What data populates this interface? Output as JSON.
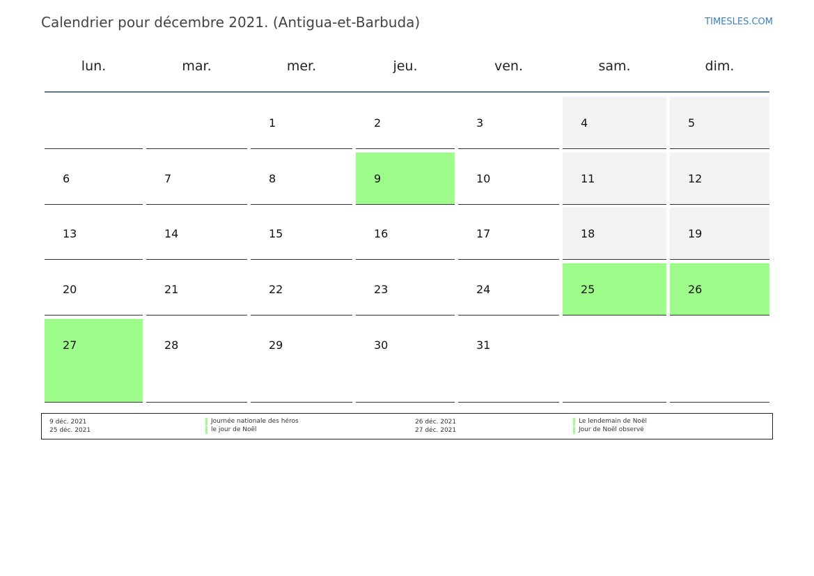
{
  "header": {
    "title": "Calendrier pour décembre 2021. (Antigua-et-Barbuda)",
    "site": "TIMESLES.COM"
  },
  "weekdays": [
    "lun.",
    "mar.",
    "mer.",
    "jeu.",
    "ven.",
    "sam.",
    "dim."
  ],
  "weeks": [
    [
      "",
      "",
      "1",
      "2",
      "3",
      "4",
      "5"
    ],
    [
      "6",
      "7",
      "8",
      "9",
      "10",
      "11",
      "12"
    ],
    [
      "13",
      "14",
      "15",
      "16",
      "17",
      "18",
      "19"
    ],
    [
      "20",
      "21",
      "22",
      "23",
      "24",
      "25",
      "26"
    ],
    [
      "27",
      "28",
      "29",
      "30",
      "31",
      "",
      ""
    ]
  ],
  "colors": {
    "holiday": "#9dfc8a",
    "weekend": "#f3f3f3",
    "rule": "#5a7395",
    "link": "#3a7fc1"
  },
  "legend": [
    {
      "date": "9 déc. 2021",
      "name": "Journée nationale des héros"
    },
    {
      "date": "25 déc. 2021",
      "name": "le jour de Noël"
    },
    {
      "date": "26 déc. 2021",
      "name": "Le lendemain de Noël"
    },
    {
      "date": "27 déc. 2021",
      "name": "Jour de Noël observé"
    }
  ]
}
